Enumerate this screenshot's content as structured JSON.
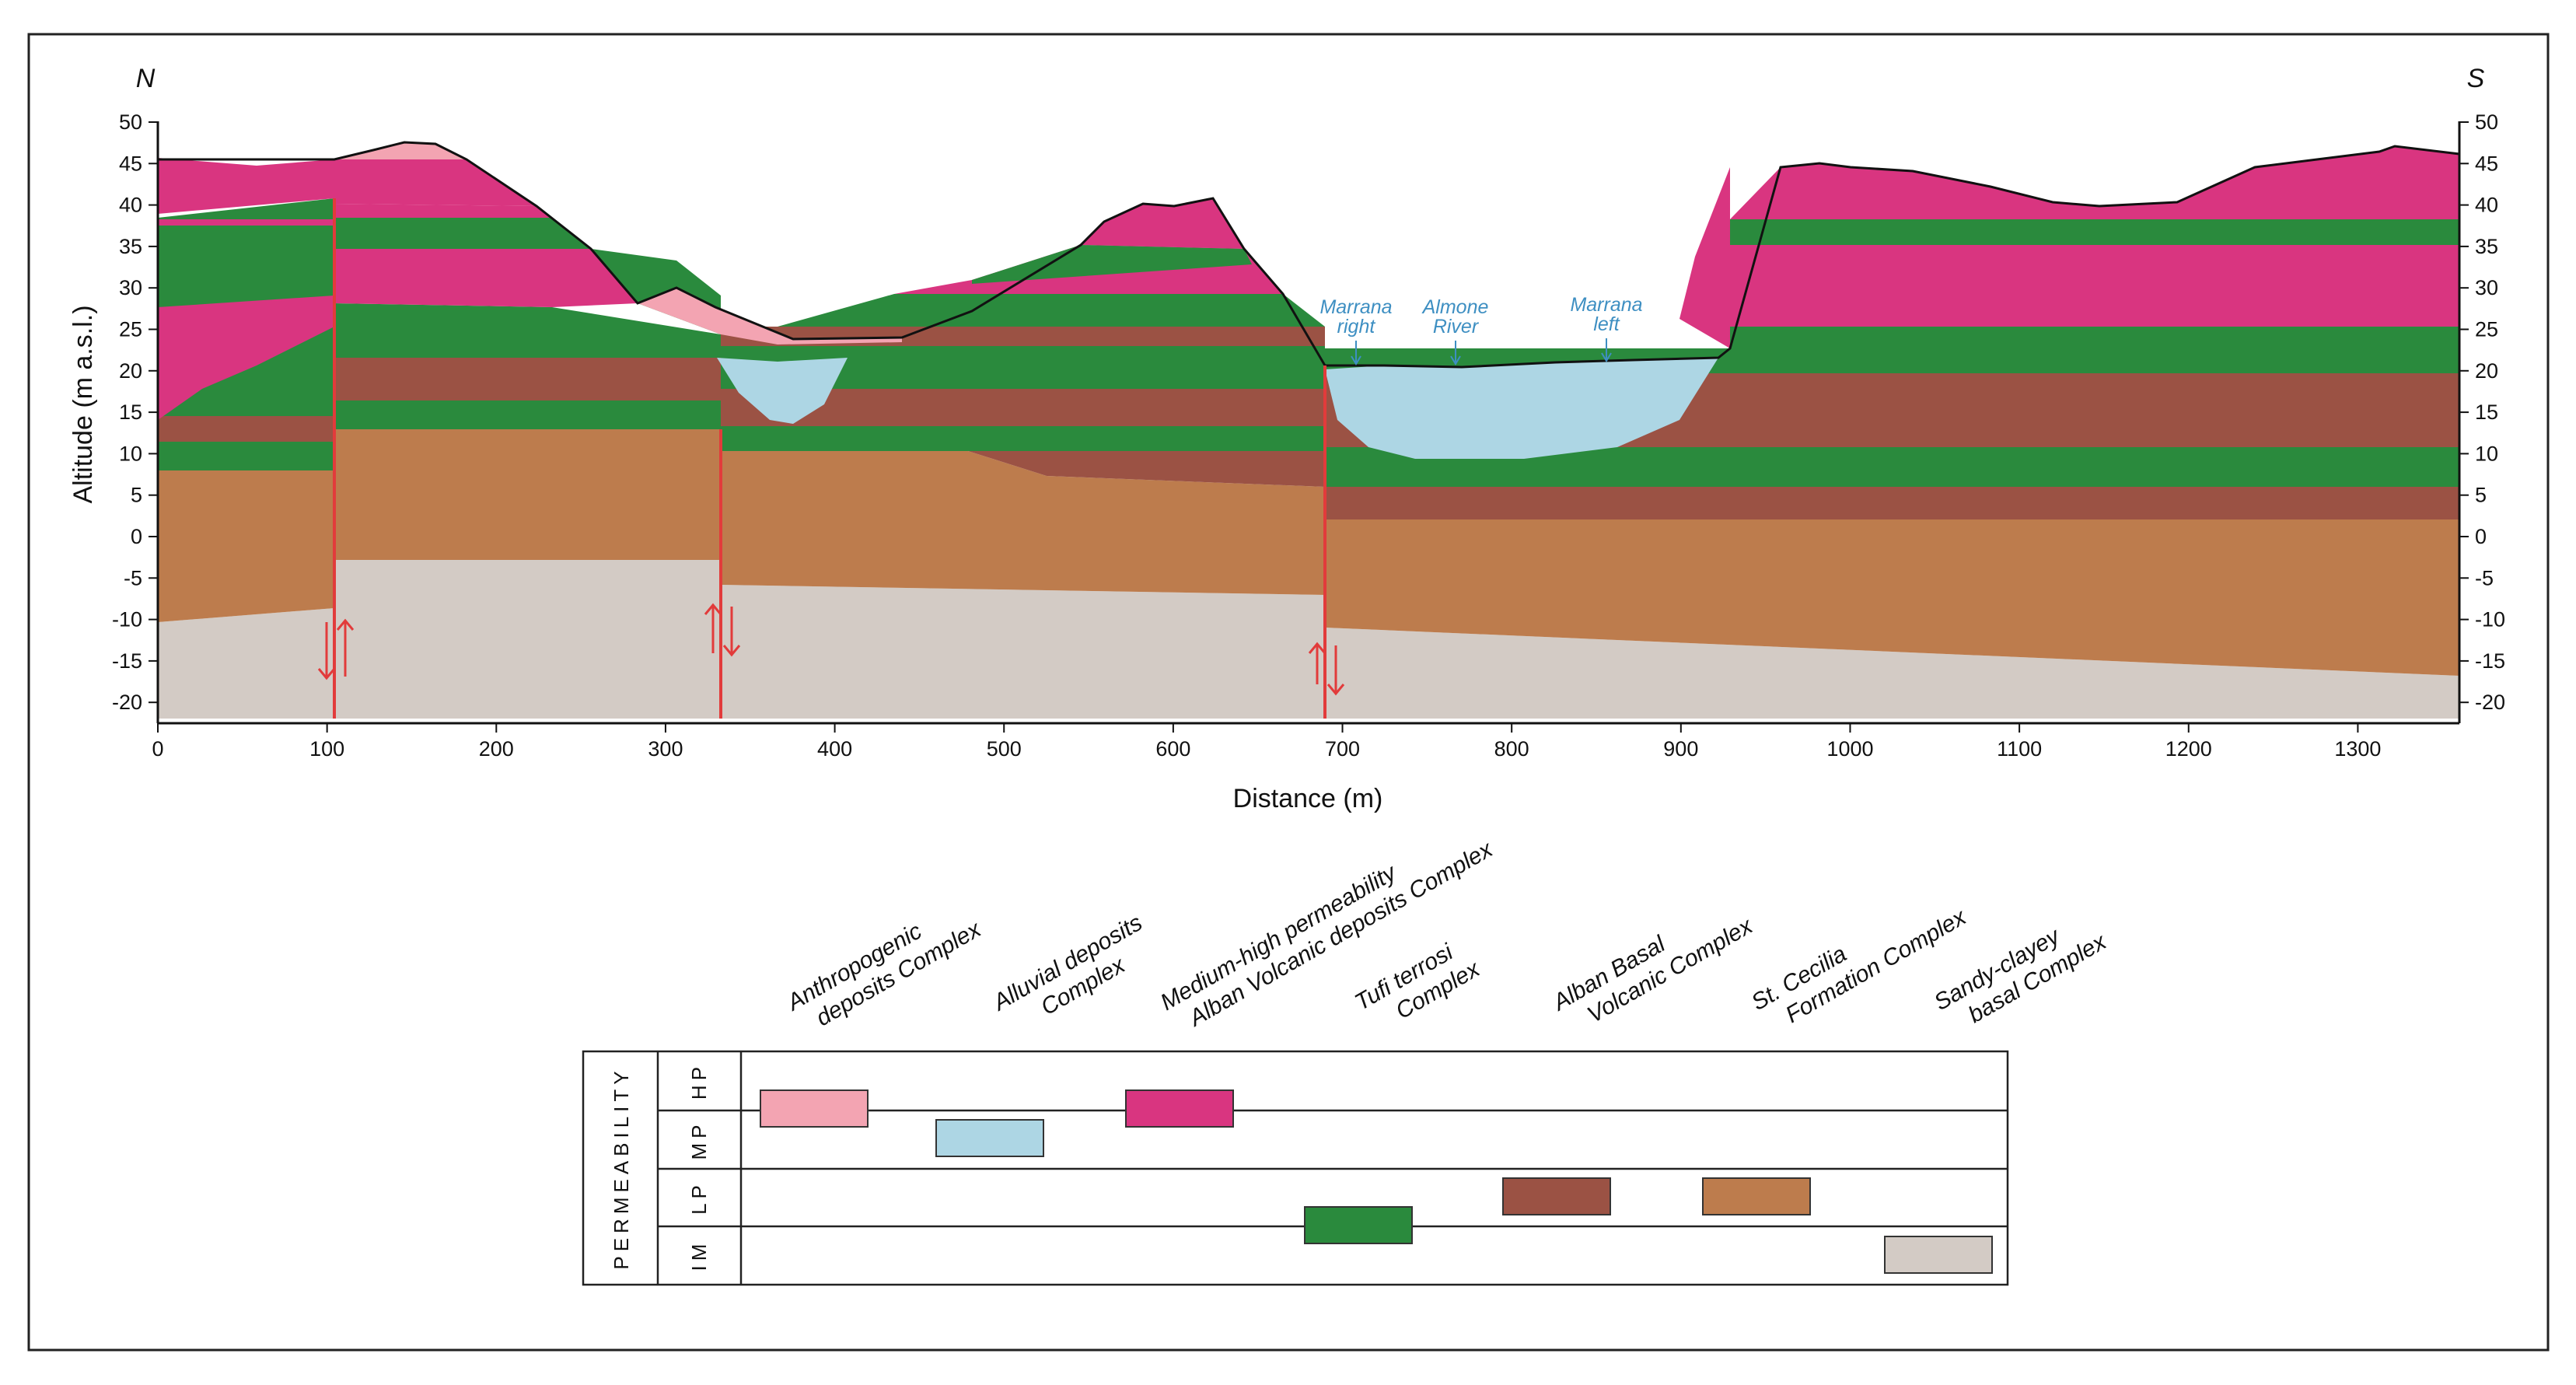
{
  "figure": {
    "north_label": "N",
    "south_label": "S",
    "y_axis_label": "Altitude (m a.s.l.)",
    "x_axis_label": "Distance (m)",
    "y_ticks": [
      "50",
      "45",
      "40",
      "35",
      "30",
      "25",
      "20",
      "15",
      "10",
      "5",
      "0",
      "-5",
      "-10",
      "-15",
      "-20"
    ],
    "x_ticks": [
      "0",
      "100",
      "200",
      "300",
      "400",
      "500",
      "600",
      "700",
      "800",
      "900",
      "1000",
      "1100",
      "1200",
      "1300"
    ],
    "x_range_m": [
      0,
      1360
    ],
    "y_range_m": [
      -22,
      50
    ],
    "fault_positions_m": [
      105,
      333,
      690
    ]
  },
  "rivers": [
    {
      "line1": "Marrana",
      "line2": "right",
      "at_m": 705
    },
    {
      "line1": "Almone",
      "line2": "River",
      "at_m": 764
    },
    {
      "line1": "Marrana",
      "line2": "left",
      "at_m": 853
    }
  ],
  "units": [
    {
      "id": "anthropogenic",
      "line1": "Anthropogenic",
      "line2": "deposits Complex",
      "color": "#f3a4b2",
      "permeability": "HP"
    },
    {
      "id": "alluvial",
      "line1": "Alluvial deposits",
      "line2": "Complex",
      "color": "#add6e4",
      "permeability": "MP"
    },
    {
      "id": "alban-volcanic",
      "line1": "Medium-high permeability",
      "line2": "Alban Volcanic deposits Complex",
      "color": "#d93580",
      "permeability": "HP"
    },
    {
      "id": "tufi-terrosi",
      "line1": "Tufi terrosi",
      "line2": "Complex",
      "color": "#2a8a3d",
      "permeability": "IM"
    },
    {
      "id": "alban-basal",
      "line1": "Alban Basal",
      "line2": "Volcanic Complex",
      "color": "#9b5244",
      "permeability": "LP"
    },
    {
      "id": "st-cecilia",
      "line1": "St. Cecilia",
      "line2": "Formation Complex",
      "color": "#bd7c4d",
      "permeability": "LP"
    },
    {
      "id": "sandy-clayey",
      "line1": "Sandy-clayey",
      "line2": "basal Complex",
      "color": "#d3cbc5",
      "permeability": "IM"
    }
  ],
  "permeability_table": {
    "title": "PERMEABILITY",
    "classes": [
      "HP",
      "MP",
      "LP",
      "IM"
    ]
  }
}
